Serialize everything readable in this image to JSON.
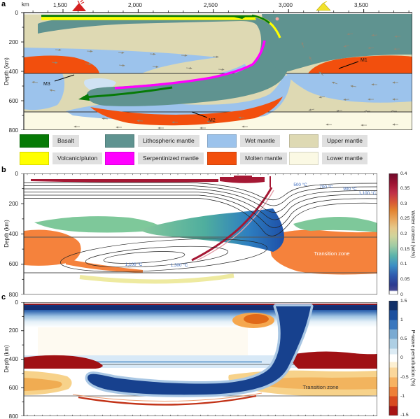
{
  "panels": {
    "a_label": "a",
    "b_label": "b",
    "c_label": "c"
  },
  "panel_a": {
    "x_axis": {
      "unit": "km",
      "tick_labels": [
        "1,500",
        "2,000",
        "2,500",
        "3,000",
        "3,500"
      ]
    },
    "icons": {
      "active_volcano": "red-volcano-icon",
      "incipient_volcano": "yellow-volcano-icon"
    },
    "markers": {
      "m1": "M1",
      "m2": "M2",
      "m3": "M3"
    }
  },
  "depth_axis": {
    "label": "Depth (km)",
    "tick_labels": [
      "0",
      "200",
      "400",
      "600",
      "800"
    ]
  },
  "legend": {
    "items": [
      {
        "label": "Basalt",
        "color": "#067a06"
      },
      {
        "label": "Lithospheric mantle",
        "color": "#5f9390"
      },
      {
        "label": "Wet mantle",
        "color": "#9cc3ec"
      },
      {
        "label": "Upper mantle",
        "color": "#ded9b3"
      },
      {
        "label": "Volcanic/pluton",
        "color": "#ffff00"
      },
      {
        "label": "Serpentinized mantle",
        "color": "#ff00ff"
      },
      {
        "label": "Molten mantle",
        "color": "#f24f0d"
      },
      {
        "label": "Lower mantle",
        "color": "#fbf9e4"
      }
    ]
  },
  "panel_b": {
    "contour_labels": {
      "t500": "500 °C",
      "t700": "700 °C",
      "t900": "900 °C",
      "t1100_top": "1,100 °C",
      "t1100": "1,100 °C",
      "t1300": "1,300 °C"
    },
    "region_label": "Transition zone",
    "colorbar": {
      "title": "Water content (wt%)",
      "tick_labels": [
        "0.4",
        "0.35",
        "0.3",
        "0.25",
        "0.2",
        "0.15",
        "0.1",
        "0.05",
        "0"
      ]
    }
  },
  "panel_c": {
    "region_label": "Transition zone",
    "colorbar": {
      "title": "P-wave perturbation (%)",
      "tick_labels": [
        "1.5",
        "1",
        "0.5",
        "0",
        "-0.5",
        "-1",
        "-1.5"
      ]
    }
  }
}
